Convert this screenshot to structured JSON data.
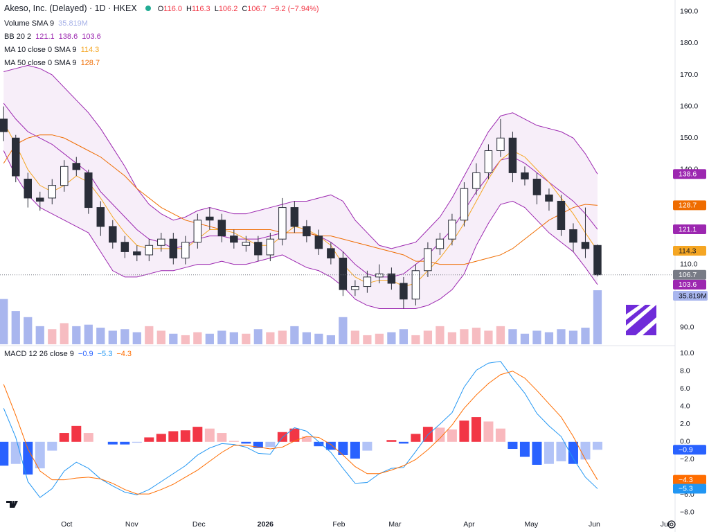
{
  "chart_data": [
    {
      "type": "candlestick",
      "title": "Akeso, Inc. (Delayed) · 1D · HKEX",
      "ohlc_legend": [
        {
          "label": "O",
          "value": "116.0"
        },
        {
          "label": "H",
          "value": "116.3"
        },
        {
          "label": "L",
          "value": "106.2"
        },
        {
          "label": "C",
          "value": "106.7"
        }
      ],
      "change": "−9.2 (−7.94%)",
      "indicators": [
        {
          "name": "Volume SMA 9",
          "values": [
            "35.819M"
          ],
          "colors": [
            "#a7b2e8"
          ]
        },
        {
          "name": "BB 20 2",
          "values": [
            "121.1",
            "138.6",
            "103.6"
          ],
          "colors": [
            "#9c27b0",
            "#9c27b0",
            "#9c27b0"
          ]
        },
        {
          "name": "MA 10 close 0 SMA 9",
          "values": [
            "114.3"
          ],
          "colors": [
            "#f5a623"
          ]
        },
        {
          "name": "MA 50 close 0 SMA 9",
          "values": [
            "128.7"
          ],
          "colors": [
            "#ef6c00"
          ]
        }
      ],
      "open": [
        156,
        150,
        137,
        131,
        131,
        135,
        142,
        139,
        128,
        122,
        117,
        114,
        113,
        116,
        118,
        112,
        117,
        125,
        124,
        119,
        116,
        117,
        113,
        118,
        128,
        122,
        119,
        115,
        112,
        102,
        103,
        106,
        107,
        104,
        99,
        108,
        115,
        118,
        124,
        134,
        139,
        146,
        150,
        139,
        137,
        132,
        130,
        121,
        117,
        116.0
      ],
      "high": [
        160,
        151,
        139,
        133,
        137,
        143,
        144,
        140,
        130,
        124,
        119,
        116,
        118,
        120,
        120,
        119,
        126,
        128,
        126,
        121,
        119,
        119,
        120,
        131,
        130,
        124,
        121,
        117,
        114,
        105,
        108,
        110,
        109,
        106,
        110,
        117,
        120,
        126,
        136,
        142,
        148,
        156,
        152,
        141,
        139,
        134,
        132,
        123,
        128,
        116.3
      ],
      "low": [
        149,
        136,
        128,
        127,
        129,
        133,
        138,
        126,
        119,
        115,
        112,
        111,
        111,
        114,
        110,
        110,
        115,
        121,
        117,
        115,
        114,
        111,
        111,
        116,
        120,
        117,
        113,
        110,
        100,
        100,
        101,
        104,
        102,
        96,
        97,
        106,
        113,
        116,
        122,
        132,
        137,
        144,
        136,
        135,
        129,
        127,
        119,
        114,
        112,
        106.2
      ],
      "close": [
        152,
        138,
        131,
        130,
        135,
        141,
        140,
        128,
        122,
        117,
        114,
        113,
        116,
        118,
        112,
        117,
        124,
        124,
        119,
        117,
        117,
        113,
        118,
        128,
        122,
        119,
        115,
        112,
        102,
        103,
        106,
        107,
        104,
        99,
        108,
        115,
        118,
        124,
        134,
        139,
        146,
        150,
        139,
        137,
        132,
        130,
        121,
        117,
        115,
        106.7
      ],
      "up_color": "#ffffff",
      "down_color": "#2a2e39",
      "volume": {
        "values": [
          30,
          22,
          18,
          12,
          10,
          14,
          12,
          13,
          11,
          9,
          10,
          8,
          12,
          9,
          7,
          6,
          8,
          7,
          9,
          8,
          7,
          10,
          8,
          9,
          12,
          8,
          7,
          6,
          18,
          9,
          6,
          7,
          8,
          10,
          6,
          9,
          12,
          8,
          10,
          11,
          9,
          12,
          10,
          7,
          9,
          8,
          10,
          9,
          11,
          35.819
        ],
        "value_labels": [
          null,
          null,
          null,
          null,
          null,
          null,
          null,
          null,
          null,
          null,
          null,
          null,
          null,
          null,
          null,
          null,
          null,
          null,
          null,
          null,
          null,
          null,
          null,
          null,
          null,
          null,
          null,
          null,
          null,
          null,
          null,
          null,
          null,
          null,
          null,
          null,
          null,
          null,
          null,
          null,
          null,
          null,
          null,
          null,
          null,
          null,
          null,
          null,
          null,
          "35.819M"
        ],
        "up_color": "#f6bcc1",
        "down_color": "#a9b6ee"
      },
      "bb": {
        "color": "#9c27b0",
        "fill": "rgba(156,39,176,0.08)",
        "upper": [
          171,
          172,
          173,
          172,
          170,
          166,
          162,
          158,
          153,
          147,
          141,
          134,
          129,
          126,
          124,
          125,
          127,
          128,
          127,
          126,
          126,
          127,
          128,
          129,
          130,
          130,
          131,
          132,
          130,
          124,
          120,
          116,
          115,
          116,
          117,
          121,
          125,
          131,
          138,
          145,
          152,
          157,
          158,
          156,
          154,
          153,
          152,
          150,
          145,
          138.6
        ],
        "basis": [
          161,
          156,
          152,
          150,
          148,
          145,
          142,
          139,
          133,
          129,
          125,
          121,
          118,
          117,
          115,
          116,
          118,
          119,
          119,
          118,
          118,
          118,
          119,
          120,
          120,
          120,
          119,
          117,
          114,
          110,
          107,
          106,
          106,
          107,
          110,
          113,
          117,
          121,
          127,
          133,
          138,
          143,
          144,
          142,
          139,
          136,
          133,
          130,
          126,
          121.1
        ],
        "lower": [
          146,
          138,
          132,
          128,
          126,
          124,
          122,
          120,
          114,
          108,
          106,
          106,
          107,
          108,
          108,
          109,
          110,
          110,
          111,
          110,
          110,
          111,
          112,
          113,
          111,
          109,
          108,
          106,
          103,
          99,
          97,
          96,
          96,
          96,
          96,
          97,
          99,
          102,
          107,
          116,
          123,
          129,
          130,
          128,
          124,
          120,
          117,
          114,
          109,
          103.6
        ]
      },
      "ma": [
        {
          "color": "#f5a623",
          "values": [
            155,
            148,
            140,
            135,
            133,
            135,
            138,
            136,
            131,
            125,
            120,
            116,
            115,
            115,
            115,
            115,
            118,
            121,
            121,
            120,
            118,
            116,
            116,
            119,
            122,
            121,
            119,
            116,
            110,
            106,
            104,
            105,
            105,
            103,
            104,
            108,
            112,
            117,
            123,
            130,
            137,
            143,
            146,
            144,
            140,
            136,
            131,
            126,
            120,
            114.3
          ]
        },
        {
          "color": "#ef6c00",
          "values": [
            142,
            148,
            150,
            151,
            151,
            150,
            148,
            146,
            144,
            141,
            138,
            134,
            131,
            128,
            126,
            124,
            123,
            122,
            121,
            121,
            121,
            121,
            121,
            120,
            120,
            120,
            119,
            119,
            118,
            117,
            116,
            115,
            114,
            113,
            111,
            111,
            110,
            110,
            110,
            111,
            112,
            113,
            115,
            118,
            121,
            124,
            126,
            128,
            129,
            128.7
          ]
        }
      ],
      "ylim": [
        84.7,
        193.7
      ],
      "yticks": [
        {
          "value": 190,
          "label": "190.0"
        },
        {
          "value": 180,
          "label": "180.0"
        },
        {
          "value": 170,
          "label": "170.0"
        },
        {
          "value": 160,
          "label": "160.0"
        },
        {
          "value": 150,
          "label": "150.0"
        },
        {
          "value": 140,
          "label": "140.0"
        },
        {
          "value": 110,
          "label": "110.0"
        },
        {
          "value": 90,
          "label": "90.0"
        }
      ]
    },
    {
      "type": "line",
      "title": "MACD 12 26 close 9",
      "legend_values": [
        "−0.9",
        "−5.3",
        "−4.3"
      ],
      "legend_colors": [
        "#2962ff",
        "#2196f3",
        "#ff6d00"
      ],
      "series": [
        {
          "type": "bar",
          "colors": [
            "#f23645",
            "#f9b8bd",
            "#2962ff",
            "#b2c3f7"
          ],
          "values": [
            -2.7,
            -2.5,
            -3.7,
            -3.0,
            -1.0,
            1.0,
            1.8,
            1.0,
            0,
            -0.3,
            -0.3,
            -0.1,
            0.5,
            0.9,
            1.2,
            1.3,
            1.7,
            1.5,
            1.0,
            0.1,
            -0.2,
            -0.7,
            -0.6,
            1.1,
            1.5,
            0.6,
            -0.5,
            -0.9,
            -1.5,
            -1.9,
            -1.0,
            0,
            0.2,
            -0.2,
            0.9,
            1.7,
            1.6,
            1.4,
            2.4,
            2.8,
            2.3,
            1.5,
            -0.8,
            -1.7,
            -2.6,
            -2.5,
            -2.2,
            -2.5,
            -2.0,
            -0.9
          ],
          "value_labels": [
            null,
            null,
            null,
            null,
            null,
            null,
            null,
            null,
            null,
            null,
            null,
            null,
            null,
            null,
            null,
            null,
            null,
            null,
            null,
            null,
            null,
            null,
            null,
            null,
            null,
            null,
            null,
            null,
            null,
            null,
            null,
            null,
            null,
            null,
            null,
            null,
            null,
            null,
            null,
            null,
            null,
            null,
            null,
            null,
            null,
            null,
            null,
            null,
            null,
            "−0.9"
          ]
        },
        {
          "type": "line",
          "color": "#2196f3",
          "values": [
            3.8,
            0.5,
            -4.5,
            -6.3,
            -5.3,
            -3.3,
            -2.3,
            -3.0,
            -4.2,
            -5.0,
            -5.7,
            -6.0,
            -5.4,
            -4.5,
            -3.6,
            -2.7,
            -1.5,
            -0.7,
            -0.2,
            -0.3,
            -0.6,
            -1.3,
            -1.4,
            0.5,
            1.6,
            1.2,
            0,
            -1.2,
            -3.0,
            -4.7,
            -4.6,
            -3.6,
            -3.0,
            -2.9,
            -1.1,
            0.8,
            2.0,
            3.3,
            6.2,
            8.1,
            8.9,
            9.1,
            7.2,
            5.5,
            3.2,
            1.8,
            0.6,
            -1.9,
            -4.0,
            -5.3
          ],
          "value_labels": [
            null,
            null,
            null,
            null,
            null,
            null,
            null,
            null,
            null,
            null,
            null,
            null,
            null,
            null,
            null,
            null,
            null,
            null,
            null,
            null,
            null,
            null,
            null,
            null,
            null,
            null,
            null,
            null,
            null,
            null,
            null,
            null,
            null,
            null,
            null,
            null,
            null,
            null,
            null,
            null,
            null,
            null,
            null,
            null,
            null,
            null,
            null,
            null,
            null,
            "−5.3"
          ]
        },
        {
          "type": "line",
          "color": "#ff6d00",
          "values": [
            6.5,
            3.0,
            -0.8,
            -3.3,
            -4.3,
            -4.3,
            -4.1,
            -4.0,
            -4.2,
            -4.7,
            -5.4,
            -5.9,
            -5.9,
            -5.4,
            -4.8,
            -4.0,
            -3.2,
            -2.2,
            -1.2,
            -0.4,
            -0.4,
            -0.6,
            -0.8,
            -0.6,
            0.1,
            0.6,
            0.5,
            -0.3,
            -1.5,
            -2.8,
            -3.6,
            -3.6,
            -3.2,
            -2.7,
            -2.0,
            -0.9,
            0.4,
            1.9,
            3.8,
            5.3,
            6.6,
            7.6,
            8.0,
            7.2,
            5.8,
            4.3,
            2.8,
            0.6,
            -2.0,
            -4.3
          ],
          "value_labels": [
            null,
            null,
            null,
            null,
            null,
            null,
            null,
            null,
            null,
            null,
            null,
            null,
            null,
            null,
            null,
            null,
            null,
            null,
            null,
            null,
            null,
            null,
            null,
            null,
            null,
            null,
            null,
            null,
            null,
            null,
            null,
            null,
            null,
            null,
            null,
            null,
            null,
            null,
            null,
            null,
            null,
            null,
            null,
            null,
            null,
            null,
            null,
            null,
            null,
            "−4.3"
          ]
        }
      ],
      "ylim": [
        -8.4,
        10.8
      ],
      "yticks": [
        {
          "value": 10,
          "label": "10.0"
        },
        {
          "value": 8,
          "label": "8.0"
        },
        {
          "value": 6,
          "label": "6.0"
        },
        {
          "value": 4,
          "label": "4.0"
        },
        {
          "value": 2,
          "label": "2.0"
        },
        {
          "value": 0,
          "label": "0.0"
        },
        {
          "value": -2,
          "label": "−2.0"
        },
        {
          "value": -6,
          "label": "−6.0"
        },
        {
          "value": -8,
          "label": "−8.0"
        }
      ],
      "xlim": [
        -0.3,
        55.4
      ],
      "xticks": [
        {
          "value": 5.2,
          "label": "Oct"
        },
        {
          "value": 10.57,
          "label": "Nov"
        },
        {
          "value": 16.11,
          "label": "Dec"
        },
        {
          "value": 21.6,
          "label": "2026"
        },
        {
          "value": 27.66,
          "label": "Feb"
        },
        {
          "value": 32.29,
          "label": "Mar"
        },
        {
          "value": 38.4,
          "label": "Apr"
        },
        {
          "value": 43.54,
          "label": "May"
        },
        {
          "value": 48.74,
          "label": "Jun"
        },
        {
          "value": 54.57,
          "label": "Jul"
        }
      ]
    }
  ]
}
